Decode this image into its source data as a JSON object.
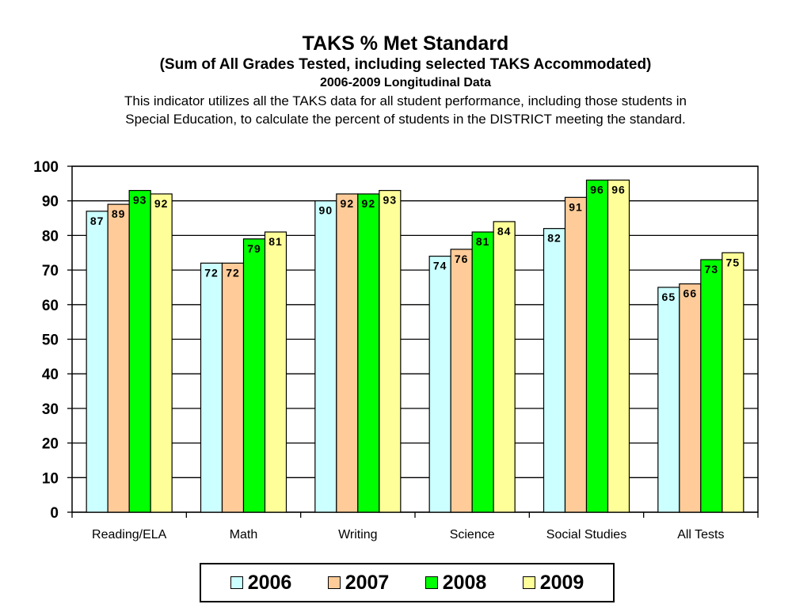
{
  "header": {
    "title": "TAKS % Met Standard",
    "subtitle": "(Sum of All Grades Tested, including selected TAKS Accommodated)",
    "period": "2006-2009 Longitudinal Data",
    "description_line1": "This indicator utilizes all the TAKS data for all student performance, including those students in",
    "description_line2": "Special Education, to calculate the percent of students in the DISTRICT meeting the standard."
  },
  "chart_data": {
    "type": "bar",
    "title": "TAKS % Met Standard",
    "subtitle": "(Sum of All Grades Tested, including selected TAKS Accommodated)",
    "categories": [
      "Reading/ELA",
      "Math",
      "Writing",
      "Science",
      "Social Studies",
      "All Tests"
    ],
    "series": [
      {
        "name": "2006",
        "color": "#ccffff",
        "values": [
          87,
          72,
          90,
          74,
          82,
          65
        ]
      },
      {
        "name": "2007",
        "color": "#ffcc99",
        "values": [
          89,
          72,
          92,
          76,
          91,
          66
        ]
      },
      {
        "name": "2008",
        "color": "#00ff00",
        "values": [
          93,
          79,
          92,
          81,
          96,
          73
        ]
      },
      {
        "name": "2009",
        "color": "#ffff99",
        "values": [
          92,
          81,
          93,
          84,
          96,
          75
        ]
      }
    ],
    "ylim": [
      0,
      100
    ],
    "yticks": [
      0,
      10,
      20,
      30,
      40,
      50,
      60,
      70,
      80,
      90,
      100
    ],
    "grid": true,
    "legend_position": "bottom",
    "xlabel": "",
    "ylabel": ""
  }
}
